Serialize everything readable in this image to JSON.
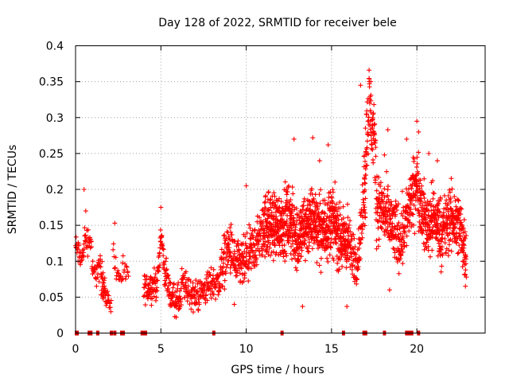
{
  "chart_data": {
    "type": "scatter",
    "title": "Day 128 of 2022, SRMTID for receiver bele",
    "xlabel": "GPS time / hours",
    "ylabel": "SRMTID / TECUs",
    "xlim": [
      0,
      24
    ],
    "ylim": [
      0,
      0.4
    ],
    "xticks": [
      0,
      5,
      10,
      15,
      20
    ],
    "xtick_labels": [
      "0",
      "5",
      "10",
      "15",
      "20"
    ],
    "yticks": [
      0,
      0.05,
      0.1,
      0.15,
      0.2,
      0.25,
      0.3,
      0.35,
      0.4
    ],
    "ytick_labels": [
      "0",
      "0.05",
      "0.1",
      "0.15",
      "0.2",
      "0.25",
      "0.3",
      "0.35",
      "0.4"
    ],
    "grid": true,
    "marker": "+",
    "color": "#ff0000",
    "zero_marker_color": "#cc0000",
    "zero_value_hours": [
      0.05,
      0.1,
      0.8,
      0.9,
      1.3,
      2.1,
      2.3,
      2.7,
      2.8,
      3.9,
      4.0,
      4.1,
      8.1,
      12.1,
      15.7,
      16.9,
      17.0,
      18.1,
      19.4,
      19.5,
      19.6,
      19.7,
      20.1
    ],
    "series": [
      {
        "name": "SRMTID",
        "segments": [
          {
            "start": 0.0,
            "end": 1.75,
            "level": [
              [
                0.0,
                0.12
              ],
              [
                0.4,
                0.1
              ],
              [
                0.5,
                0.13
              ],
              [
                0.9,
                0.13
              ],
              [
                1.0,
                0.08
              ],
              [
                1.4,
                0.09
              ],
              [
                1.75,
                0.07
              ]
            ],
            "spread": 0.02,
            "step": 0.018
          },
          {
            "start": 1.5,
            "end": 2.1,
            "level": [
              [
                1.5,
                0.06
              ],
              [
                2.1,
                0.04
              ]
            ],
            "spread": 0.012,
            "step": 0.02
          },
          {
            "start": 2.2,
            "end": 3.1,
            "level": [
              [
                2.2,
                0.12
              ],
              [
                2.4,
                0.08
              ],
              [
                3.1,
                0.08
              ]
            ],
            "spread": 0.02,
            "step": 0.03
          },
          {
            "start": 4.0,
            "end": 6.2,
            "level": [
              [
                4.0,
                0.06
              ],
              [
                4.8,
                0.07
              ],
              [
                5.0,
                0.14
              ],
              [
                5.2,
                0.09
              ],
              [
                5.6,
                0.05
              ],
              [
                6.2,
                0.045
              ]
            ],
            "spread": 0.02,
            "step": 0.012
          },
          {
            "start": 6.2,
            "end": 8.5,
            "level": [
              [
                6.2,
                0.07
              ],
              [
                7.0,
                0.05
              ],
              [
                7.5,
                0.06
              ],
              [
                8.0,
                0.07
              ],
              [
                8.5,
                0.07
              ]
            ],
            "spread": 0.022,
            "step": 0.014
          },
          {
            "start": 8.5,
            "end": 11.0,
            "level": [
              [
                8.5,
                0.09
              ],
              [
                9.0,
                0.12
              ],
              [
                9.5,
                0.09
              ],
              [
                10.0,
                0.1
              ],
              [
                10.5,
                0.12
              ],
              [
                11.0,
                0.14
              ]
            ],
            "spread": 0.035,
            "step": 0.01
          },
          {
            "start": 11.0,
            "end": 16.0,
            "level": [
              [
                11.0,
                0.15
              ],
              [
                12.0,
                0.15
              ],
              [
                12.5,
                0.16
              ],
              [
                13.0,
                0.13
              ],
              [
                13.5,
                0.15
              ],
              [
                14.0,
                0.16
              ],
              [
                14.5,
                0.14
              ],
              [
                15.0,
                0.16
              ],
              [
                15.5,
                0.13
              ],
              [
                16.0,
                0.13
              ]
            ],
            "spread": 0.045,
            "step": 0.006
          },
          {
            "start": 16.0,
            "end": 17.0,
            "level": [
              [
                16.0,
                0.12
              ],
              [
                16.5,
                0.1
              ],
              [
                16.9,
                0.18
              ]
            ],
            "spread": 0.035,
            "step": 0.01
          },
          {
            "start": 16.9,
            "end": 17.6,
            "level": [
              [
                16.9,
                0.22
              ],
              [
                17.2,
                0.32
              ],
              [
                17.6,
                0.24
              ]
            ],
            "spread": 0.05,
            "step": 0.008
          },
          {
            "start": 17.6,
            "end": 19.5,
            "level": [
              [
                17.6,
                0.18
              ],
              [
                18.0,
                0.17
              ],
              [
                18.5,
                0.15
              ],
              [
                19.0,
                0.13
              ],
              [
                19.5,
                0.17
              ]
            ],
            "spread": 0.045,
            "step": 0.008
          },
          {
            "start": 19.5,
            "end": 22.9,
            "level": [
              [
                19.5,
                0.17
              ],
              [
                20.0,
                0.21
              ],
              [
                20.5,
                0.15
              ],
              [
                21.0,
                0.16
              ],
              [
                21.5,
                0.14
              ],
              [
                22.0,
                0.16
              ],
              [
                22.5,
                0.15
              ],
              [
                22.9,
                0.11
              ]
            ],
            "spread": 0.045,
            "step": 0.007
          }
        ],
        "peaks": [
          [
            0.5,
            0.2
          ],
          [
            0.6,
            0.17
          ],
          [
            2.3,
            0.153
          ],
          [
            5.0,
            0.175
          ],
          [
            10.0,
            0.205
          ],
          [
            12.8,
            0.27
          ],
          [
            13.9,
            0.272
          ],
          [
            14.3,
            0.24
          ],
          [
            14.8,
            0.262
          ],
          [
            16.7,
            0.345
          ],
          [
            17.2,
            0.366
          ],
          [
            17.3,
            0.35
          ],
          [
            17.4,
            0.3
          ],
          [
            17.5,
            0.29
          ],
          [
            18.1,
            0.248
          ],
          [
            18.3,
            0.283
          ],
          [
            19.4,
            0.27
          ],
          [
            20.0,
            0.295
          ],
          [
            20.1,
            0.28
          ],
          [
            20.7,
            0.25
          ],
          [
            21.2,
            0.24
          ]
        ],
        "troughs": [
          [
            5.9,
            0.022
          ],
          [
            13.3,
            0.037
          ],
          [
            15.9,
            0.037
          ],
          [
            9.3,
            0.04
          ],
          [
            18.4,
            0.06
          ]
        ]
      }
    ]
  }
}
